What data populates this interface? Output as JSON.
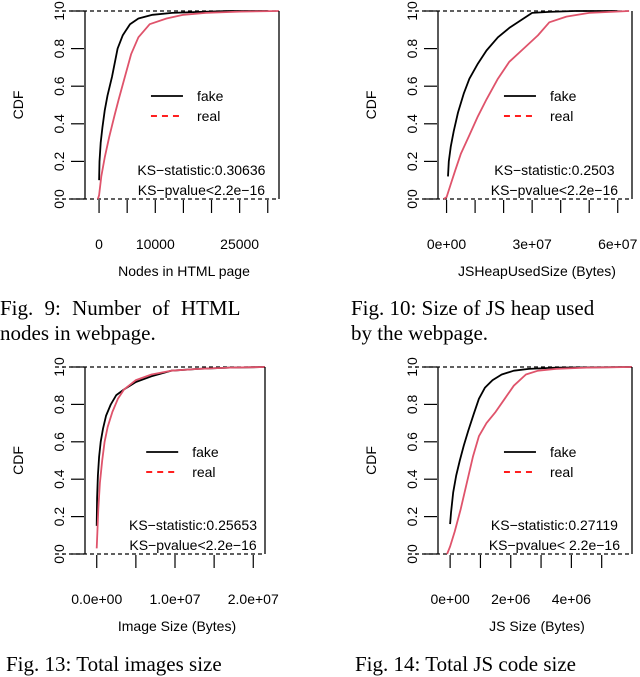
{
  "colors": {
    "fake": "#000000",
    "real": "#df536b",
    "legend_real": "#ff0000"
  },
  "legend": {
    "fake": "fake",
    "real": "real"
  },
  "ylabel": "CDF",
  "yticks": [
    "0.0",
    "0.2",
    "0.4",
    "0.6",
    "0.8",
    "1.0"
  ],
  "captions": {
    "fig9": [
      "Fig. 9: Number of HTML",
      "nodes in webpage."
    ],
    "fig10": [
      "Fig. 10: Size of JS heap used",
      "by the webpage."
    ],
    "fig13": "Fig. 13: Total images size",
    "fig14": "Fig. 14: Total JS code size"
  },
  "chart_data": [
    {
      "id": "fig9",
      "type": "line",
      "title": "Fig. 9: Number of HTML nodes in webpage.",
      "xlabel": "Nodes in HTML page",
      "ylabel": "CDF",
      "xlim": [
        -2500,
        32000
      ],
      "ylim": [
        0,
        1
      ],
      "xticks": [
        0,
        5000,
        10000,
        15000,
        20000,
        25000,
        30000
      ],
      "xtick_labels": [
        {
          "value": 0,
          "label": "0"
        },
        {
          "value": 10000,
          "label": "10000"
        },
        {
          "value": 25000,
          "label": "25000"
        }
      ],
      "ks_statistic": "KS−statistic:0.30636",
      "ks_pvalue": "KS−pvalue<2.2e−16",
      "series": [
        {
          "name": "fake",
          "x": [
            0,
            80,
            300,
            600,
            1000,
            1500,
            2300,
            3300,
            4200,
            5500,
            7000,
            9500,
            13000,
            18000,
            23000,
            30000
          ],
          "y": [
            0.1,
            0.2,
            0.3,
            0.38,
            0.47,
            0.55,
            0.65,
            0.8,
            0.87,
            0.93,
            0.96,
            0.98,
            0.99,
            0.995,
            1.0,
            1.0
          ]
        },
        {
          "name": "real",
          "x": [
            -200,
            0,
            400,
            1000,
            1800,
            2800,
            3500,
            4600,
            5700,
            7000,
            9000,
            12000,
            15000,
            19000,
            25000,
            32000
          ],
          "y": [
            0.0,
            0.02,
            0.12,
            0.22,
            0.33,
            0.45,
            0.53,
            0.65,
            0.77,
            0.86,
            0.93,
            0.96,
            0.98,
            0.99,
            0.997,
            1.0
          ]
        }
      ]
    },
    {
      "id": "fig10",
      "type": "line",
      "title": "Fig. 10: Size of JS heap used by the webpage.",
      "xlabel": "JSHeapUsedSize (Bytes)",
      "ylabel": "CDF",
      "xlim": [
        -3000000,
        65000000
      ],
      "ylim": [
        0,
        1
      ],
      "xticks": [
        0,
        10000000,
        20000000,
        30000000,
        40000000,
        50000000,
        60000000
      ],
      "xtick_labels": [
        {
          "value": 0,
          "label": "0e+00"
        },
        {
          "value": 30000000,
          "label": "3e+07"
        },
        {
          "value": 60000000,
          "label": "6e+07"
        }
      ],
      "ks_statistic": "KS−statistic:0.2503",
      "ks_pvalue": "KS−pvalue<2.2e−16",
      "series": [
        {
          "name": "fake",
          "x": [
            500000,
            800000,
            1500000,
            2500000,
            4000000,
            6000000,
            8000000,
            11000000,
            14000000,
            18000000,
            22000000,
            26000000,
            30000000,
            36000000,
            45000000,
            60000000
          ],
          "y": [
            0.12,
            0.2,
            0.28,
            0.36,
            0.46,
            0.56,
            0.64,
            0.72,
            0.79,
            0.86,
            0.91,
            0.95,
            0.99,
            0.995,
            1.0,
            1.0
          ]
        },
        {
          "name": "real",
          "x": [
            -1000000,
            0,
            1500000,
            3000000,
            5000000,
            8000000,
            11000000,
            14000000,
            18000000,
            22000000,
            27000000,
            32000000,
            36000000,
            42000000,
            50000000,
            64000000
          ],
          "y": [
            0.0,
            0.01,
            0.08,
            0.15,
            0.24,
            0.34,
            0.44,
            0.53,
            0.64,
            0.73,
            0.8,
            0.87,
            0.94,
            0.97,
            0.99,
            1.0
          ]
        }
      ]
    },
    {
      "id": "fig13",
      "type": "line",
      "title": "Fig. 13: Total images size",
      "xlabel": "Image Size (Bytes)",
      "ylabel": "CDF",
      "xlim": [
        -1500000,
        21500000
      ],
      "ylim": [
        0,
        1
      ],
      "xticks": [
        0,
        5000000,
        10000000,
        15000000,
        20000000
      ],
      "xtick_labels": [
        {
          "value": 0,
          "label": "0.0e+00"
        },
        {
          "value": 10000000,
          "label": "1.0e+07"
        },
        {
          "value": 20000000,
          "label": "2.0e+07"
        }
      ],
      "ks_statistic": "KS−statistic:0.25653",
      "ks_pvalue": "KS−pvalue<2.2e−16",
      "series": [
        {
          "name": "fake",
          "x": [
            0,
            50000,
            150000,
            300000,
            500000,
            800000,
            1200000,
            1800000,
            2500000,
            3500000,
            5000000,
            7000000,
            9500000,
            13000000,
            17000000,
            21500000
          ],
          "y": [
            0.15,
            0.3,
            0.42,
            0.52,
            0.6,
            0.67,
            0.74,
            0.8,
            0.85,
            0.88,
            0.92,
            0.95,
            0.98,
            0.99,
            0.997,
            1.0
          ]
        },
        {
          "name": "real",
          "x": [
            0,
            80000,
            200000,
            400000,
            700000,
            1000000,
            1400000,
            2000000,
            2700000,
            3500000,
            5000000,
            7000000,
            9500000,
            13000000,
            17000000,
            21500000
          ],
          "y": [
            0.03,
            0.12,
            0.24,
            0.38,
            0.5,
            0.6,
            0.68,
            0.76,
            0.83,
            0.88,
            0.93,
            0.96,
            0.98,
            0.99,
            0.997,
            1.0
          ]
        }
      ]
    },
    {
      "id": "fig14",
      "type": "line",
      "title": "Fig. 14: Total JS code size",
      "xlabel": "JS Size (Bytes)",
      "ylabel": "CDF",
      "xlim": [
        -400000,
        6000000
      ],
      "ylim": [
        0,
        1
      ],
      "xticks": [
        0,
        1000000,
        2000000,
        3000000,
        4000000,
        5000000
      ],
      "xtick_labels": [
        {
          "value": 0,
          "label": "0e+00"
        },
        {
          "value": 2000000,
          "label": "2e+06"
        },
        {
          "value": 4000000,
          "label": "4e+06"
        }
      ],
      "ks_statistic": "KS−statistic:0.27119",
      "ks_pvalue": "KS−pvalue< 2.2e−16",
      "series": [
        {
          "name": "fake",
          "x": [
            0,
            30000,
            100000,
            200000,
            320000,
            450000,
            600000,
            780000,
            950000,
            1150000,
            1400000,
            1700000,
            2100000,
            2600000,
            3500000,
            6000000
          ],
          "y": [
            0.16,
            0.22,
            0.33,
            0.42,
            0.5,
            0.58,
            0.66,
            0.75,
            0.83,
            0.89,
            0.93,
            0.96,
            0.98,
            0.99,
            0.997,
            1.0
          ]
        },
        {
          "name": "real",
          "x": [
            -100000,
            0,
            150000,
            350000,
            550000,
            750000,
            950000,
            1200000,
            1500000,
            1800000,
            2100000,
            2500000,
            2900000,
            3500000,
            4500000,
            6000000
          ],
          "y": [
            0.0,
            0.04,
            0.12,
            0.24,
            0.38,
            0.52,
            0.63,
            0.7,
            0.76,
            0.83,
            0.9,
            0.96,
            0.98,
            0.99,
            0.997,
            1.0
          ]
        }
      ]
    }
  ]
}
